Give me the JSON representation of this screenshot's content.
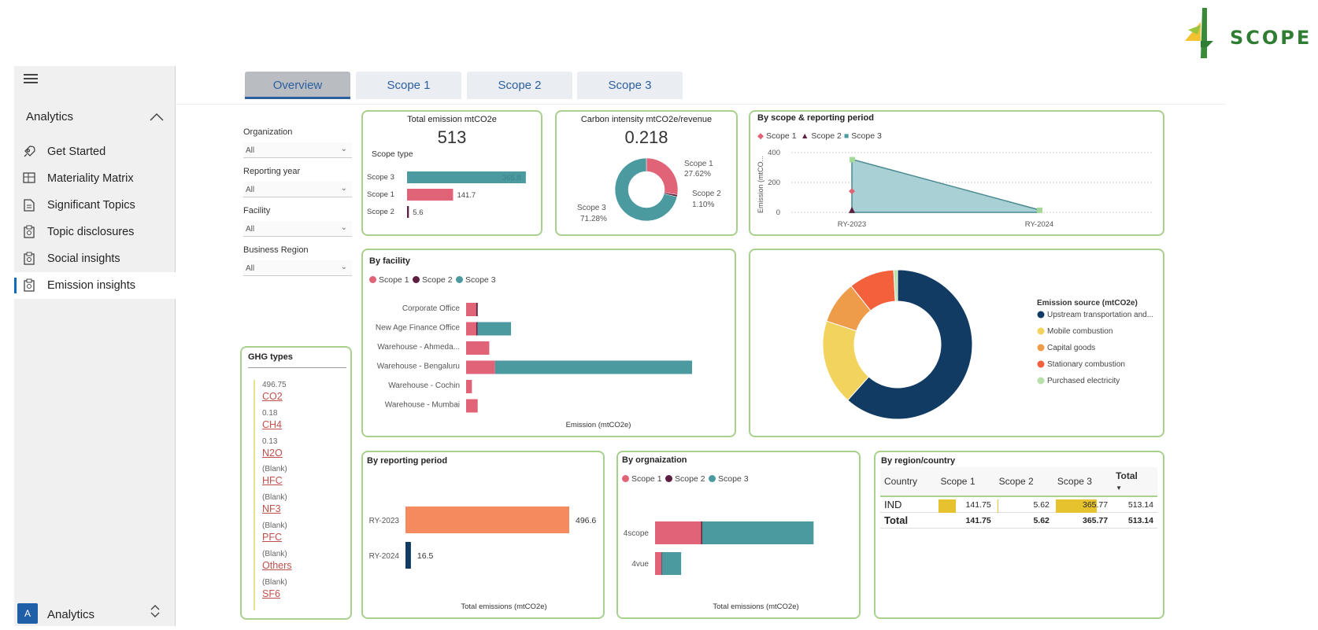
{
  "logo": {
    "text": "SCOPE"
  },
  "sidebar": {
    "section_title": "Analytics",
    "items": [
      {
        "label": "Get Started",
        "icon": "rocket-icon"
      },
      {
        "label": "Materiality Matrix",
        "icon": "matrix-icon"
      },
      {
        "label": "Significant Topics",
        "icon": "document-icon"
      },
      {
        "label": "Topic disclosures",
        "icon": "clipboard-icon"
      },
      {
        "label": "Social insights",
        "icon": "clipboard-icon"
      },
      {
        "label": "Emission insights",
        "icon": "clipboard-icon",
        "active": true
      }
    ],
    "footer": {
      "avatar": "A",
      "label": "Analytics"
    }
  },
  "tabs": [
    {
      "label": "Overview",
      "active": true
    },
    {
      "label": "Scope 1"
    },
    {
      "label": "Scope 2"
    },
    {
      "label": "Scope 3"
    }
  ],
  "filters": [
    {
      "label": "Organization",
      "value": "All"
    },
    {
      "label": "Reporting year",
      "value": "All"
    },
    {
      "label": "Facility",
      "value": "All"
    },
    {
      "label": "Business Region",
      "value": "All"
    }
  ],
  "colors": {
    "scope1": "#e06377",
    "scope2": "#5c1f3f",
    "scope3": "#4a9aa0",
    "accent": "#2b5fa0",
    "border": "#a8d18d"
  },
  "total_emission": {
    "title": "Total emission mtCO2e",
    "value": "513",
    "subtitle": "Scope type",
    "bars": [
      {
        "label": "Scope 3",
        "value": 365.77,
        "display": "365.8"
      },
      {
        "label": "Scope 1",
        "value": 141.7,
        "display": "141.7"
      },
      {
        "label": "Scope 2",
        "value": 5.6,
        "display": "5.6"
      }
    ]
  },
  "carbon_intensity": {
    "title": "Carbon intensity mtCO2e/revenue",
    "value": "0.218",
    "slices": [
      {
        "name": "Scope 1",
        "pct": 27.62,
        "display": "27.62%"
      },
      {
        "name": "Scope 2",
        "pct": 1.1,
        "display": "1.10%"
      },
      {
        "name": "Scope 3",
        "pct": 71.28,
        "display": "71.28%"
      }
    ]
  },
  "ghg": {
    "title": "GHG types",
    "items": [
      {
        "value": "496.75",
        "label": "CO2"
      },
      {
        "value": "0.18",
        "label": "CH4"
      },
      {
        "value": "0.13",
        "label": "N2O"
      },
      {
        "value": "(Blank)",
        "label": "HFC"
      },
      {
        "value": "(Blank)",
        "label": "NF3"
      },
      {
        "value": "(Blank)",
        "label": "PFC"
      },
      {
        "value": "(Blank)",
        "label": "Others"
      },
      {
        "value": "(Blank)",
        "label": "SF6"
      }
    ]
  },
  "region": {
    "title": "By region/country",
    "headers": [
      "Country",
      "Scope 1",
      "Scope 2",
      "Scope 3",
      "Total"
    ],
    "rows": [
      {
        "country": "IND",
        "s1": "141.75",
        "s2": "5.62",
        "s3": "365.77",
        "total": "513.14"
      }
    ],
    "total_row": {
      "label": "Total",
      "s1": "141.75",
      "s2": "5.62",
      "s3": "365.77",
      "total": "513.14"
    }
  },
  "chart_data": [
    {
      "type": "area",
      "title": "By scope & reporting period",
      "ylabel": "Emission (mtCO...",
      "categories": [
        "RY-2023",
        "RY-2024"
      ],
      "yticks": [
        "400",
        "200",
        "0"
      ],
      "ylim": [
        0,
        400
      ],
      "series": [
        {
          "name": "Scope 1",
          "values": [
            141.7,
            null
          ]
        },
        {
          "name": "Scope 2",
          "values": [
            5.6,
            null
          ]
        },
        {
          "name": "Scope 3",
          "values": [
            355,
            16.5
          ]
        }
      ]
    },
    {
      "type": "bar",
      "title": "By facility",
      "xlabel": "Emission (mtCO2e)",
      "categories": [
        "Corporate Office",
        "New Age Finance Office",
        "Warehouse - Ahmeda...",
        "Warehouse - Bengaluru",
        "Warehouse - Cochin",
        "Warehouse - Mumbai"
      ],
      "series": [
        {
          "name": "Scope 1",
          "values": [
            14,
            14,
            32,
            40,
            8,
            16
          ]
        },
        {
          "name": "Scope 2",
          "values": [
            2,
            2,
            0,
            0,
            0,
            0
          ]
        },
        {
          "name": "Scope 3",
          "values": [
            0,
            46,
            0,
            272,
            0,
            0
          ]
        }
      ]
    },
    {
      "type": "pie",
      "title": "Emission source (mtCO2e)",
      "categories": [
        "Upstream transportation and...",
        "Mobile combustion",
        "Capital goods",
        "Stationary combustion",
        "Purchased electricity"
      ],
      "values": [
        300,
        90,
        45,
        48,
        4
      ],
      "colors": [
        "#123b63",
        "#f2d35e",
        "#ee9c4a",
        "#f3603c",
        "#b8e0a8"
      ]
    },
    {
      "type": "bar",
      "title": "By reporting period",
      "xlabel": "Total emissions (mtCO2e)",
      "categories": [
        "RY-2023",
        "RY-2024"
      ],
      "values": [
        496.6,
        16.5
      ],
      "labels": [
        "496.6",
        "16.5"
      ],
      "colors": [
        "#f58a5f",
        "#123b63"
      ]
    },
    {
      "type": "bar",
      "title": "By orgnaization",
      "xlabel": "Total emissions (mtCO2e)",
      "categories": [
        "4scope",
        "4vue"
      ],
      "series": [
        {
          "name": "Scope 1",
          "values": [
            120,
            16
          ]
        },
        {
          "name": "Scope 2",
          "values": [
            3,
            2
          ]
        },
        {
          "name": "Scope 3",
          "values": [
            290,
            50
          ]
        }
      ]
    }
  ]
}
